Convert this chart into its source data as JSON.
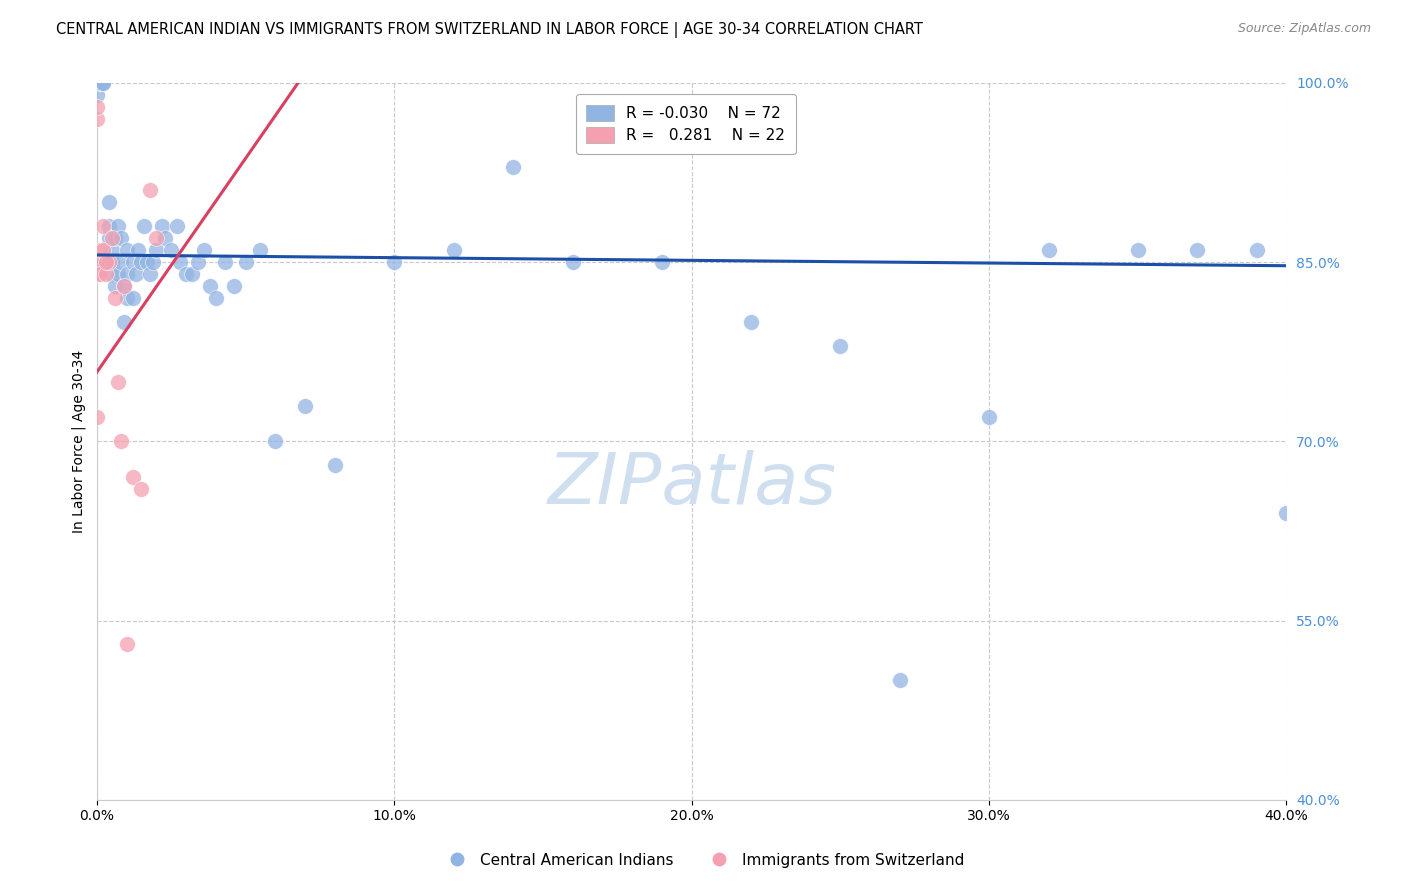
{
  "title": "CENTRAL AMERICAN INDIAN VS IMMIGRANTS FROM SWITZERLAND IN LABOR FORCE | AGE 30-34 CORRELATION CHART",
  "source": "Source: ZipAtlas.com",
  "ylabel": "In Labor Force | Age 30-34",
  "watermark": "ZIPatlas",
  "blue_R": -0.03,
  "blue_N": 72,
  "pink_R": 0.281,
  "pink_N": 22,
  "xlim": [
    0.0,
    0.4
  ],
  "ylim": [
    0.4,
    1.0
  ],
  "yticks": [
    0.4,
    0.55,
    0.7,
    0.85,
    1.0
  ],
  "xticks": [
    0.0,
    0.1,
    0.2,
    0.3,
    0.4
  ],
  "blue_color": "#92B4E3",
  "pink_color": "#F4A0B0",
  "blue_line_color": "#1B4FA8",
  "pink_line_color": "#D94060",
  "grid_color": "#C8C8D0",
  "blue_scatter_x": [
    0.0,
    0.0,
    0.0,
    0.0,
    0.0,
    0.001,
    0.001,
    0.001,
    0.002,
    0.002,
    0.002,
    0.003,
    0.003,
    0.004,
    0.004,
    0.004,
    0.005,
    0.005,
    0.005,
    0.006,
    0.006,
    0.007,
    0.007,
    0.008,
    0.008,
    0.009,
    0.009,
    0.01,
    0.01,
    0.01,
    0.012,
    0.012,
    0.013,
    0.014,
    0.015,
    0.016,
    0.017,
    0.018,
    0.019,
    0.02,
    0.022,
    0.023,
    0.025,
    0.027,
    0.028,
    0.03,
    0.032,
    0.034,
    0.036,
    0.038,
    0.04,
    0.043,
    0.046,
    0.05,
    0.055,
    0.06,
    0.07,
    0.08,
    0.1,
    0.12,
    0.14,
    0.16,
    0.19,
    0.22,
    0.25,
    0.27,
    0.3,
    0.32,
    0.35,
    0.37,
    0.39,
    0.4
  ],
  "blue_scatter_y": [
    1.0,
    1.0,
    1.0,
    1.0,
    0.99,
    1.0,
    1.0,
    1.0,
    1.0,
    1.0,
    0.85,
    0.85,
    0.85,
    0.9,
    0.88,
    0.87,
    0.86,
    0.85,
    0.84,
    0.87,
    0.83,
    0.88,
    0.84,
    0.87,
    0.85,
    0.83,
    0.8,
    0.86,
    0.84,
    0.82,
    0.85,
    0.82,
    0.84,
    0.86,
    0.85,
    0.88,
    0.85,
    0.84,
    0.85,
    0.86,
    0.88,
    0.87,
    0.86,
    0.88,
    0.85,
    0.84,
    0.84,
    0.85,
    0.86,
    0.83,
    0.82,
    0.85,
    0.83,
    0.85,
    0.86,
    0.7,
    0.73,
    0.68,
    0.85,
    0.86,
    0.93,
    0.85,
    0.85,
    0.8,
    0.78,
    0.5,
    0.72,
    0.86,
    0.86,
    0.86,
    0.86,
    0.64
  ],
  "pink_scatter_x": [
    0.0,
    0.0,
    0.0,
    0.0,
    0.0,
    0.001,
    0.001,
    0.002,
    0.002,
    0.003,
    0.004,
    0.005,
    0.006,
    0.007,
    0.008,
    0.009,
    0.01,
    0.012,
    0.015,
    0.018,
    0.02,
    0.003
  ],
  "pink_scatter_y": [
    0.72,
    0.84,
    0.85,
    0.97,
    0.98,
    0.84,
    0.86,
    0.86,
    0.88,
    0.84,
    0.85,
    0.87,
    0.82,
    0.75,
    0.7,
    0.83,
    0.53,
    0.67,
    0.66,
    0.91,
    0.87,
    0.85
  ],
  "legend_label_blue": "Central American Indians",
  "legend_label_pink": "Immigrants from Switzerland",
  "title_fontsize": 10.5,
  "axis_label_fontsize": 10,
  "tick_fontsize": 10,
  "source_fontsize": 9,
  "legend_fontsize": 11,
  "watermark_fontsize": 52,
  "watermark_color": "#D0DFF0",
  "background_color": "#FFFFFF"
}
